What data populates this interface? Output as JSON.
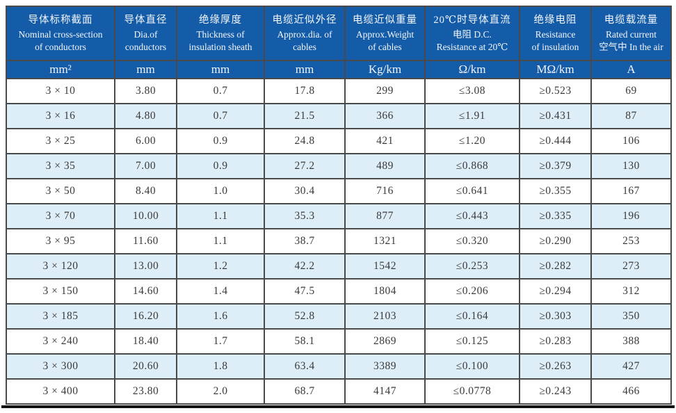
{
  "table": {
    "title": "cable-specification-table",
    "columns": [
      {
        "zh": "导体标称截面",
        "en1": "Nominal cross-section",
        "en2": "of conductors",
        "unit": "mm²"
      },
      {
        "zh": "导体直径",
        "en1": "Dia.of",
        "en2": "conductors",
        "unit": "mm"
      },
      {
        "zh": "绝缘厚度",
        "en1": "Thickness of",
        "en2": "insulation sheath",
        "unit": "mm"
      },
      {
        "zh": "电缆近似外径",
        "en1": "Approx.dia. of",
        "en2": "cables",
        "unit": "mm"
      },
      {
        "zh": "电缆近似重量",
        "en1": "Approx.Weight",
        "en2": "of cables",
        "unit": "Kg/km"
      },
      {
        "zh": "20℃时导体直流",
        "en1": "电阻 D.C.",
        "en2": "Resistance at 20℃",
        "unit": "Ω/km"
      },
      {
        "zh": "绝缘电阻",
        "en1": "Resistance",
        "en2": "of insulation",
        "unit": "MΩ/km"
      },
      {
        "zh": "电缆载流量",
        "en1": "Rated current",
        "en2": "空气中 In the air",
        "unit": "A"
      }
    ],
    "rows": [
      [
        "3 × 10",
        "3.80",
        "0.7",
        "17.8",
        "299",
        "≤3.08",
        "≥0.523",
        "69"
      ],
      [
        "3 × 16",
        "4.80",
        "0.7",
        "21.5",
        "366",
        "≤1.91",
        "≥0.431",
        "87"
      ],
      [
        "3 × 25",
        "6.00",
        "0.9",
        "24.8",
        "421",
        "≤1.20",
        "≥0.444",
        "106"
      ],
      [
        "3 × 35",
        "7.00",
        "0.9",
        "27.2",
        "489",
        "≤0.868",
        "≥0.379",
        "130"
      ],
      [
        "3 × 50",
        "8.40",
        "1.0",
        "30.4",
        "716",
        "≤0.641",
        "≥0.355",
        "167"
      ],
      [
        "3 × 70",
        "10.00",
        "1.1",
        "35.3",
        "877",
        "≤0.443",
        "≥0.335",
        "196"
      ],
      [
        "3 × 95",
        "11.60",
        "1.1",
        "38.7",
        "1321",
        "≤0.320",
        "≥0.290",
        "253"
      ],
      [
        "3 × 120",
        "13.00",
        "1.2",
        "42.2",
        "1542",
        "≤0.253",
        "≥0.282",
        "273"
      ],
      [
        "3 × 150",
        "14.60",
        "1.4",
        "47.5",
        "1804",
        "≤0.206",
        "≥0.294",
        "312"
      ],
      [
        "3 × 185",
        "16.20",
        "1.6",
        "52.8",
        "2103",
        "≤0.164",
        "≥0.303",
        "350"
      ],
      [
        "3 × 240",
        "18.40",
        "1.7",
        "58.1",
        "2869",
        "≤0.125",
        "≥0.283",
        "388"
      ],
      [
        "3 × 300",
        "20.60",
        "1.8",
        "63.4",
        "3389",
        "≤0.100",
        "≥0.263",
        "427"
      ],
      [
        "3 × 400",
        "23.80",
        "2.0",
        "68.7",
        "4147",
        "≤0.0778",
        "≥0.243",
        "466"
      ]
    ]
  },
  "colors": {
    "header_blue": "#155ca8",
    "header_text": "#f2f6fc",
    "row_alternate_blue": "#deeef8",
    "body_text": "#3a3a3a",
    "grid_border": "#4a4a4a",
    "bottom_rule": "#101010"
  }
}
